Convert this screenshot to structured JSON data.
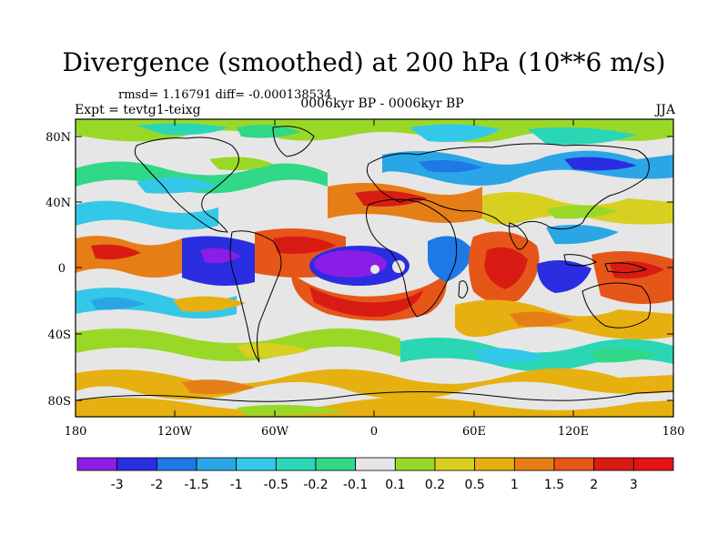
{
  "title": "Divergence (smoothed) at 200 hPa (10**6 m/s)",
  "stats": "rmsd= 1.16791 diff= -0.000138534",
  "experiment": "Expt = tevtg1-teixg",
  "period": "0006kyr BP - 0006kyr BP",
  "season": "JJA",
  "y_axis_labels": [
    "80N",
    "40N",
    "0",
    "40S",
    "80S"
  ],
  "x_axis_labels": [
    "180",
    "120W",
    "60W",
    "0",
    "60E",
    "120E",
    "180"
  ],
  "colorbar": {
    "labels": [
      "-3",
      "-2",
      "-1.5",
      "-1",
      "-0.5",
      "-0.2",
      "-0.1",
      "0.1",
      "0.2",
      "0.5",
      "1",
      "1.5",
      "2",
      "3"
    ],
    "colors": [
      "#8a1ee6",
      "#2a2ee0",
      "#1e78e6",
      "#2aa6e6",
      "#34c8e8",
      "#2ad6b4",
      "#30d888",
      "#e6e6e6",
      "#9ad828",
      "#d8d020",
      "#e6b010",
      "#e67e18",
      "#e65618",
      "#d81c14",
      "#e61414"
    ]
  }
}
